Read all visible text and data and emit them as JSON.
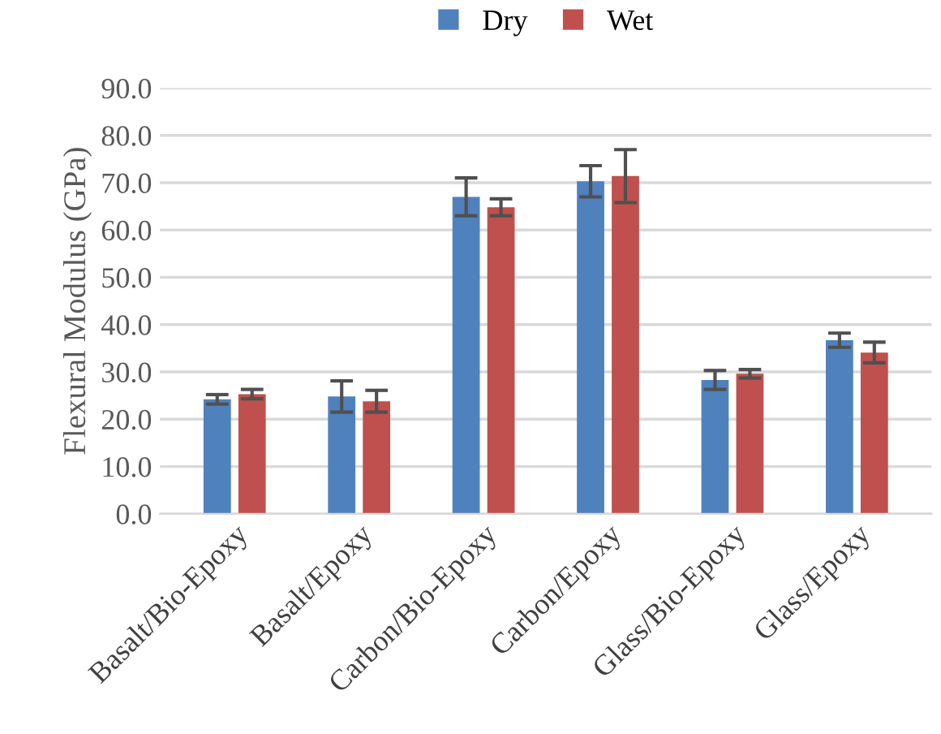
{
  "chart_data": {
    "type": "bar",
    "ylabel": "Flexural Modulus (GPa)",
    "categories": [
      "Basalt/Bio-Epoxy",
      "Basalt/Epoxy",
      "Carbon/Bio-Epoxy",
      "Carbon/Epoxy",
      "Glass/Bio-Epoxy",
      "Glass/Epoxy"
    ],
    "series": [
      {
        "name": "Dry",
        "color": "#4f81bd",
        "values": [
          24.2,
          24.8,
          67.0,
          70.3,
          28.3,
          36.7
        ],
        "errors": [
          1.0,
          3.3,
          4.0,
          3.3,
          2.0,
          1.5
        ]
      },
      {
        "name": "Wet",
        "color": "#c0504d",
        "values": [
          25.3,
          23.8,
          64.8,
          71.4,
          29.6,
          34.1
        ],
        "errors": [
          1.0,
          2.3,
          1.8,
          5.6,
          0.9,
          2.2
        ]
      }
    ],
    "ylim": [
      0,
      90
    ],
    "yticks": [
      {
        "value": 0,
        "label": "0.0"
      },
      {
        "value": 10,
        "label": "10.0"
      },
      {
        "value": 20,
        "label": "20.0"
      },
      {
        "value": 30,
        "label": "30.0"
      },
      {
        "value": 40,
        "label": "40.0"
      },
      {
        "value": 50,
        "label": "50.0"
      },
      {
        "value": 60,
        "label": "60.0"
      },
      {
        "value": 70,
        "label": "70.0"
      },
      {
        "value": 80,
        "label": "80.0"
      },
      {
        "value": 90,
        "label": "90.0"
      }
    ],
    "grid": "y",
    "legend": "top"
  }
}
